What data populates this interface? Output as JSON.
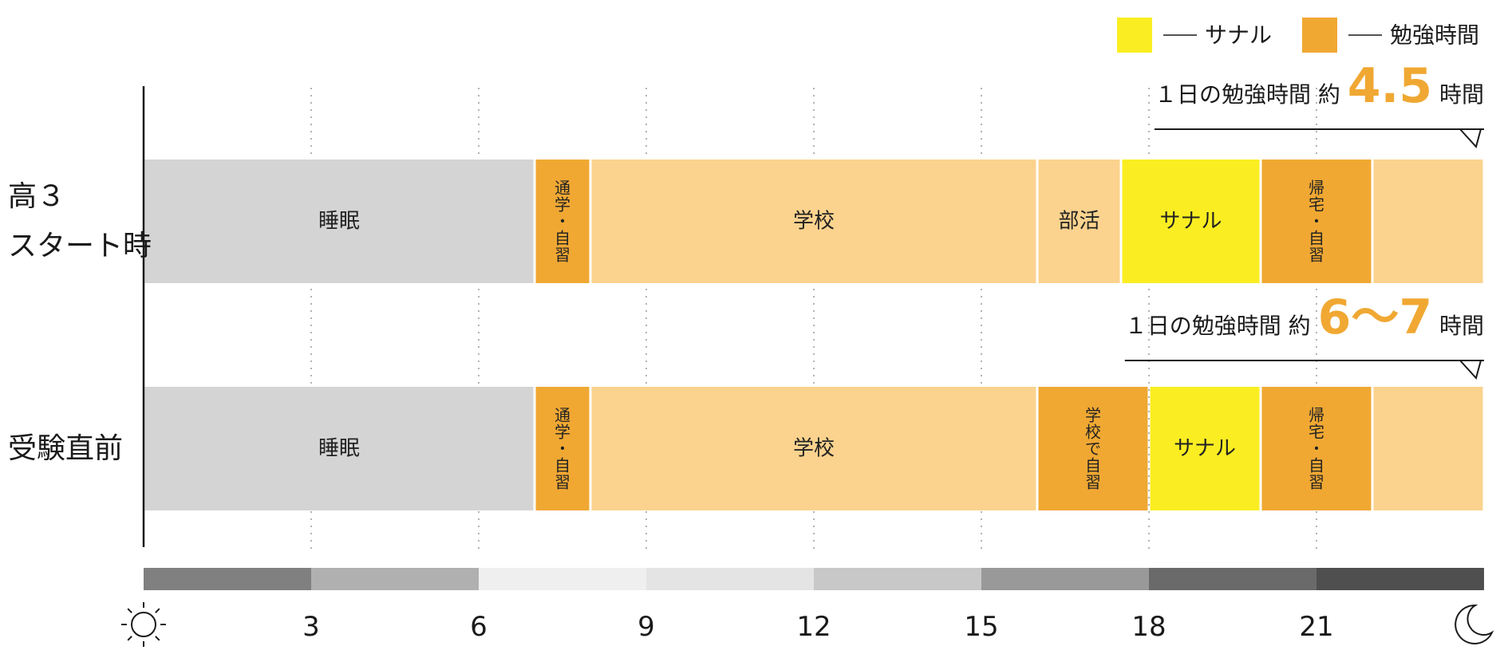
{
  "chart_data": {
    "type": "bar",
    "xlim": [
      0,
      24
    ],
    "legend": {
      "placement": "top-right",
      "items": [
        {
          "label": "サナル",
          "color": "#FAEE22"
        },
        {
          "label": "勉強時間",
          "color": "#F0A833"
        }
      ]
    },
    "rows": [
      {
        "label_lines": [
          "高３",
          "スタート時"
        ],
        "note": {
          "prefix": "１日の勉強時間  約",
          "value": "4.5",
          "suffix": "時間"
        },
        "segments": [
          {
            "start": 0,
            "end": 7,
            "label": "睡眠",
            "color": "#D4D4D4",
            "vertical": false
          },
          {
            "start": 7,
            "end": 8,
            "label": "通学・自習",
            "color": "#F0A833",
            "vertical": true
          },
          {
            "start": 8,
            "end": 16,
            "label": "学校",
            "color": "#FBD38E",
            "vertical": false
          },
          {
            "start": 16,
            "end": 17.5,
            "label": "部活",
            "color": "#FBD38E",
            "vertical": false
          },
          {
            "start": 17.5,
            "end": 20,
            "label": "サナル",
            "color": "#FAEE22",
            "vertical": false
          },
          {
            "start": 20,
            "end": 22,
            "label": "帰宅・自習",
            "color": "#F0A833",
            "vertical": true
          },
          {
            "start": 22,
            "end": 24,
            "label": "",
            "color": "#FBD38E",
            "vertical": false
          }
        ]
      },
      {
        "label_lines": [
          "受験直前"
        ],
        "note": {
          "prefix": "１日の勉強時間  約",
          "value": "6～7",
          "suffix": "時間"
        },
        "segments": [
          {
            "start": 0,
            "end": 7,
            "label": "睡眠",
            "color": "#D4D4D4",
            "vertical": false
          },
          {
            "start": 7,
            "end": 8,
            "label": "通学・自習",
            "color": "#F0A833",
            "vertical": true
          },
          {
            "start": 8,
            "end": 16,
            "label": "学校",
            "color": "#FBD38E",
            "vertical": false
          },
          {
            "start": 16,
            "end": 18,
            "label": "学校で自習",
            "color": "#F0A833",
            "vertical": true
          },
          {
            "start": 18,
            "end": 20,
            "label": "サナル",
            "color": "#FAEE22",
            "vertical": false
          },
          {
            "start": 20,
            "end": 22,
            "label": "帰宅・自習",
            "color": "#F0A833",
            "vertical": true
          },
          {
            "start": 22,
            "end": 24,
            "label": "",
            "color": "#FBD38E",
            "vertical": false
          }
        ]
      }
    ],
    "x_ticks": [
      {
        "value": 3,
        "label": "3"
      },
      {
        "value": 6,
        "label": "6"
      },
      {
        "value": 9,
        "label": "9"
      },
      {
        "value": 12,
        "label": "12"
      },
      {
        "value": 15,
        "label": "15"
      },
      {
        "value": 18,
        "label": "18"
      },
      {
        "value": 21,
        "label": "21"
      }
    ],
    "gridlines": [
      3,
      6,
      9,
      12,
      15,
      18,
      21
    ],
    "time_band": [
      {
        "start": 0,
        "end": 3,
        "color": "#808080"
      },
      {
        "start": 3,
        "end": 6,
        "color": "#B0B0B0"
      },
      {
        "start": 6,
        "end": 9,
        "color": "#EFEFEF"
      },
      {
        "start": 9,
        "end": 12,
        "color": "#E4E4E4"
      },
      {
        "start": 12,
        "end": 15,
        "color": "#C8C8C8"
      },
      {
        "start": 15,
        "end": 18,
        "color": "#999999"
      },
      {
        "start": 18,
        "end": 21,
        "color": "#6A6A6A"
      },
      {
        "start": 21,
        "end": 24,
        "color": "#4F4F4F"
      }
    ],
    "start_icon": "sun-icon",
    "end_icon": "moon-icon",
    "accent_color": "#F0A833"
  }
}
